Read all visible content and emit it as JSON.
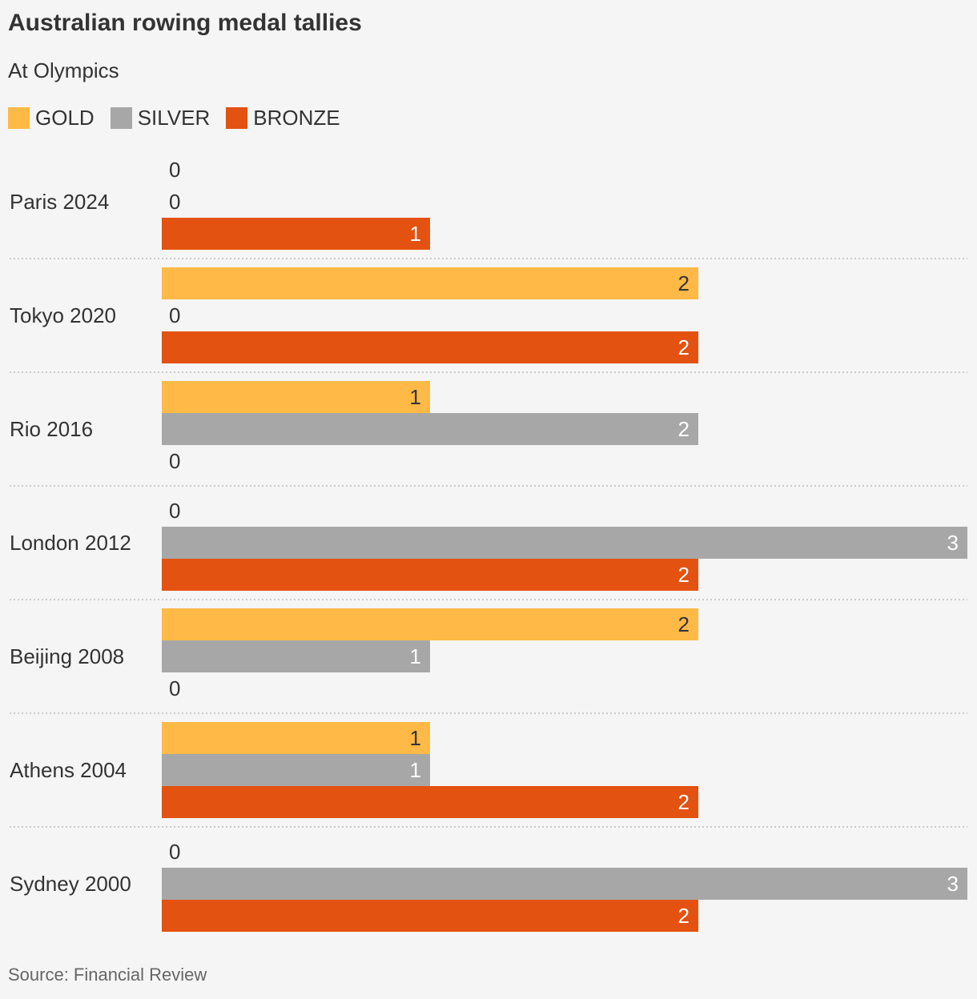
{
  "title": "Australian rowing medal tallies",
  "subtitle": "At Olympics",
  "source": "Source: Financial Review",
  "legend": [
    {
      "label": "GOLD",
      "color": "#ffb946"
    },
    {
      "label": "SILVER",
      "color": "#a7a7a7"
    },
    {
      "label": "BRONZE",
      "color": "#e35210"
    }
  ],
  "chart_data": {
    "type": "bar",
    "orientation": "horizontal",
    "categories": [
      "Paris 2024",
      "Tokyo 2020",
      "Rio 2016",
      "London 2012",
      "Beijing 2008",
      "Athens 2004",
      "Sydney 2000"
    ],
    "series": [
      {
        "name": "GOLD",
        "color": "#ffb946",
        "values": [
          0,
          2,
          1,
          0,
          2,
          1,
          0
        ]
      },
      {
        "name": "SILVER",
        "color": "#a7a7a7",
        "values": [
          0,
          0,
          2,
          3,
          1,
          1,
          3
        ]
      },
      {
        "name": "BRONZE",
        "color": "#e35210",
        "values": [
          1,
          2,
          0,
          2,
          0,
          2,
          2
        ]
      }
    ],
    "xlim": [
      0,
      3
    ],
    "grid": false,
    "legend_position": "top-left"
  }
}
